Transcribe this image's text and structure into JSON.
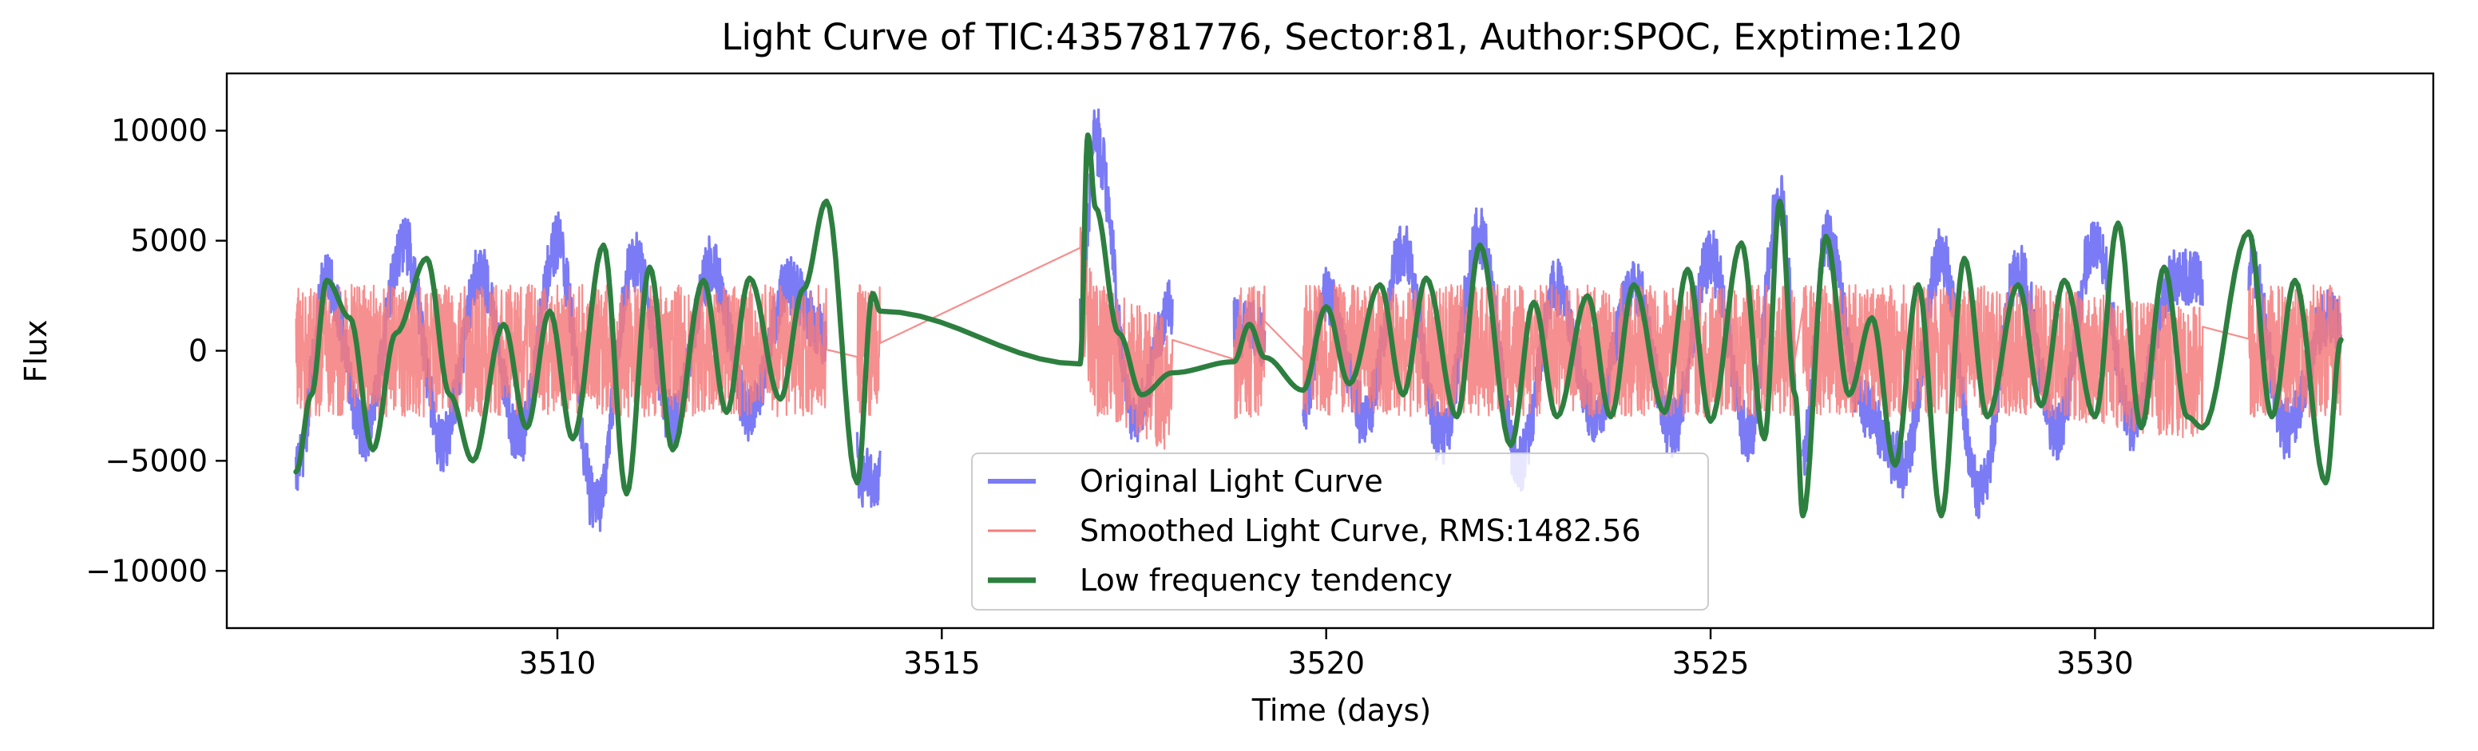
{
  "chart_data": {
    "type": "line",
    "title": "Light Curve of TIC:435781776, Sector:81, Author:SPOC, Exptime:120",
    "xlabel": "Time (days)",
    "ylabel": "Flux",
    "xlim": [
      3505.7,
      3534.4
    ],
    "ylim": [
      -12600,
      12600
    ],
    "xticks": [
      3510,
      3515,
      3520,
      3525,
      3530
    ],
    "yticks": [
      -10000,
      -5000,
      0,
      5000,
      10000
    ],
    "x_tick_labels": [
      "3510",
      "3515",
      "3520",
      "3525",
      "3530"
    ],
    "y_tick_labels": [
      "−10000",
      "−5000",
      "0",
      "5000",
      "10000"
    ],
    "grid": false,
    "legend_position": "lower-center",
    "colors": {
      "original": "#7b7bf5",
      "smoothed": "#f47b7b",
      "trend": "#2d7f3f"
    },
    "segments": [
      [
        3506.6,
        3513.5
      ],
      [
        3513.9,
        3514.2
      ],
      [
        3516.8,
        3518.0
      ],
      [
        3518.8,
        3519.2
      ],
      [
        3519.7,
        3526.1
      ],
      [
        3526.2,
        3531.4
      ],
      [
        3532.0,
        3533.2
      ]
    ],
    "series": [
      {
        "name": "Original Light Curve",
        "x": [
          3506.6,
          3507.0,
          3507.5,
          3508.0,
          3508.5,
          3509.0,
          3509.5,
          3510.0,
          3510.5,
          3511.0,
          3511.5,
          3512.0,
          3512.5,
          3513.0,
          3513.5,
          3514.0,
          3516.8,
          3517.0,
          3517.5,
          3518.0,
          3519.0,
          3519.7,
          3520.0,
          3520.5,
          3521.0,
          3521.5,
          3522.0,
          3522.5,
          3523.0,
          3523.5,
          3524.0,
          3524.5,
          3525.0,
          3525.5,
          3525.9,
          3526.2,
          3526.5,
          3527.0,
          3527.5,
          3528.0,
          3528.5,
          3529.0,
          3529.5,
          3530.0,
          3530.5,
          3531.0,
          3532.0,
          3532.5,
          3533.0
        ],
        "values": [
          -5500,
          3200,
          -3800,
          5000,
          -4200,
          3500,
          -4000,
          4800,
          -7000,
          4200,
          -3200,
          3800,
          -2800,
          3000,
          600,
          -5800,
          1800,
          9500,
          -3000,
          2000,
          1000,
          -2500,
          2400,
          -3000,
          4600,
          -4000,
          5200,
          -5200,
          2900,
          -3000,
          3100,
          -3600,
          4200,
          -4000,
          7000,
          -4600,
          5200,
          -2600,
          -5200,
          4200,
          -6400,
          3800,
          -3800,
          5000,
          -3400,
          3200,
          4000,
          -3600,
          1400
        ]
      },
      {
        "name": "Smoothed Light Curve, RMS:1482.56",
        "rms": 1482.56,
        "x": [
          3506.6,
          3510.0,
          3513.5,
          3514.0,
          3516.8,
          3517.0,
          3518.0,
          3519.0,
          3520.0,
          3523.0,
          3526.0,
          3529.0,
          3531.4,
          3532.0,
          3533.2
        ],
        "values": [
          0,
          0,
          0,
          0,
          3000,
          0,
          -1500,
          0,
          0,
          0,
          0,
          0,
          -1000,
          0,
          0
        ],
        "noise_band": [
          -3000,
          3000
        ]
      },
      {
        "name": "Low frequency tendency",
        "x": [
          3506.6,
          3506.8,
          3507.0,
          3507.3,
          3507.6,
          3507.9,
          3508.3,
          3508.6,
          3508.9,
          3509.3,
          3509.6,
          3509.9,
          3510.2,
          3510.6,
          3510.9,
          3511.2,
          3511.5,
          3511.9,
          3512.2,
          3512.5,
          3512.9,
          3513.2,
          3513.5,
          3513.9,
          3514.1,
          3514.2,
          3516.8,
          3516.9,
          3517.0,
          3517.3,
          3517.6,
          3518.0,
          3518.8,
          3519.0,
          3519.2,
          3519.7,
          3520.0,
          3520.3,
          3520.7,
          3521.0,
          3521.3,
          3521.7,
          3522.0,
          3522.4,
          3522.7,
          3523.0,
          3523.4,
          3523.7,
          3524.0,
          3524.4,
          3524.7,
          3525.0,
          3525.4,
          3525.7,
          3525.9,
          3526.1,
          3526.2,
          3526.5,
          3526.8,
          3527.1,
          3527.4,
          3527.7,
          3528.0,
          3528.3,
          3528.6,
          3529.0,
          3529.3,
          3529.6,
          3530.0,
          3530.3,
          3530.6,
          3530.9,
          3531.2,
          3531.4,
          3532.0,
          3532.3,
          3532.6,
          3533.0,
          3533.2
        ],
        "values": [
          -5500,
          -2000,
          3200,
          1500,
          -4500,
          800,
          4200,
          -2000,
          -5000,
          1200,
          -3500,
          1800,
          -4000,
          4800,
          -6500,
          3800,
          -4500,
          3200,
          -2800,
          3300,
          -2200,
          2800,
          6800,
          -6000,
          2600,
          1800,
          -600,
          9800,
          6500,
          800,
          -2000,
          -1000,
          -500,
          1200,
          -300,
          -1800,
          2000,
          -1500,
          3000,
          -2000,
          3300,
          -3000,
          4800,
          -4300,
          2200,
          -3000,
          2500,
          -3000,
          3000,
          -2800,
          3700,
          -3200,
          4900,
          -4000,
          6800,
          -2000,
          -7500,
          5200,
          -2000,
          1500,
          -5200,
          3000,
          -7500,
          4200,
          -3000,
          3000,
          -2500,
          3200,
          -3000,
          5800,
          -3500,
          3800,
          -3000,
          -3500,
          5400,
          -3000,
          3200,
          -6000,
          500
        ]
      }
    ]
  }
}
